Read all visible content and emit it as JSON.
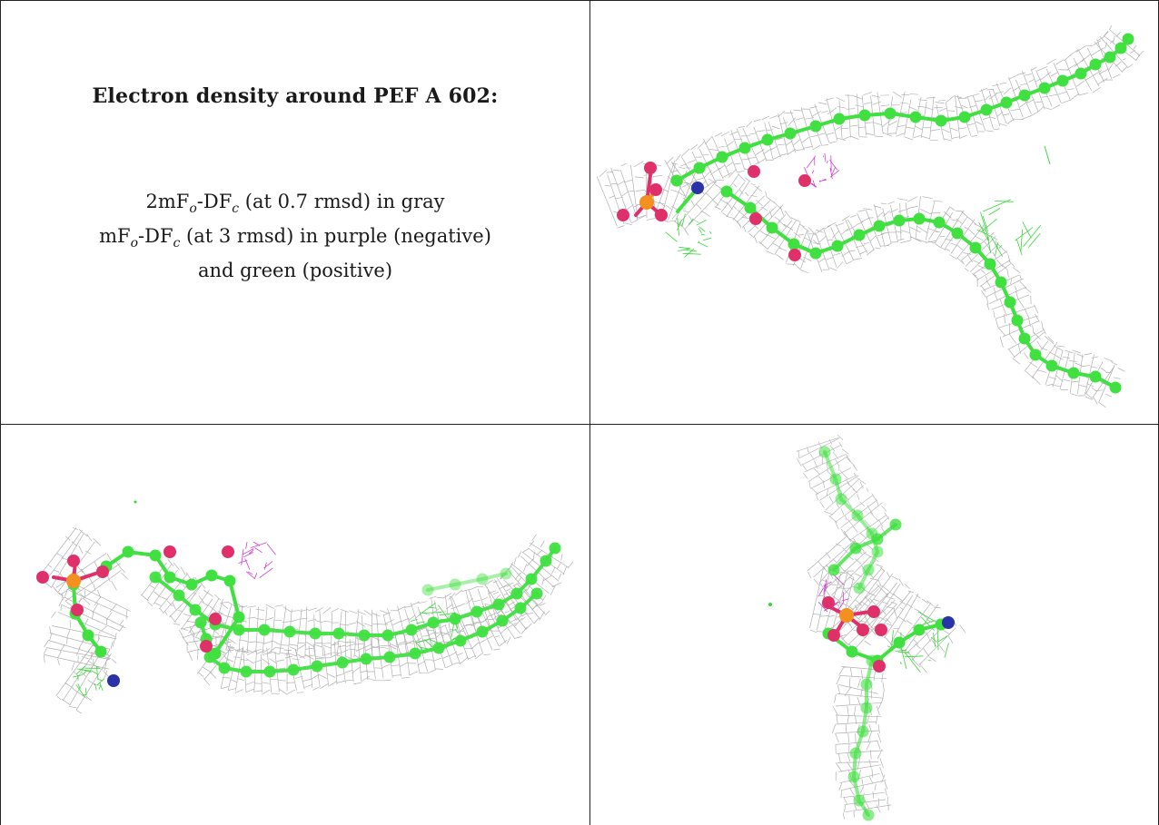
{
  "title": "Electron density around PEF A 602:",
  "legend": {
    "line1": {
      "prefix": "2mF",
      "sub1": "o",
      "mid": "-DF",
      "sub2": "c",
      "suffix": " (at 0.7 rmsd) in gray"
    },
    "line2": {
      "prefix": "mF",
      "sub1": "o",
      "mid": "-DF",
      "sub2": "c",
      "suffix": " (at 3 rmsd) in purple (negative)"
    },
    "line3": "and green (positive)"
  },
  "colors": {
    "border": "#222222",
    "mesh_gray": "#a8a8a8",
    "carbon_green": "#40e040",
    "oxygen_red": "#e0306a",
    "phosphorus_orange": "#f39020",
    "nitrogen_blue": "#2a32a8",
    "difference_negative_purple": "#d040d0",
    "difference_positive_green": "#36d836"
  },
  "panels": [
    {
      "view": "top-right",
      "content": "ligand-with-density-mesh"
    },
    {
      "view": "bottom-left",
      "content": "ligand-with-density-mesh"
    },
    {
      "view": "bottom-right",
      "content": "ligand-with-density-mesh"
    }
  ]
}
